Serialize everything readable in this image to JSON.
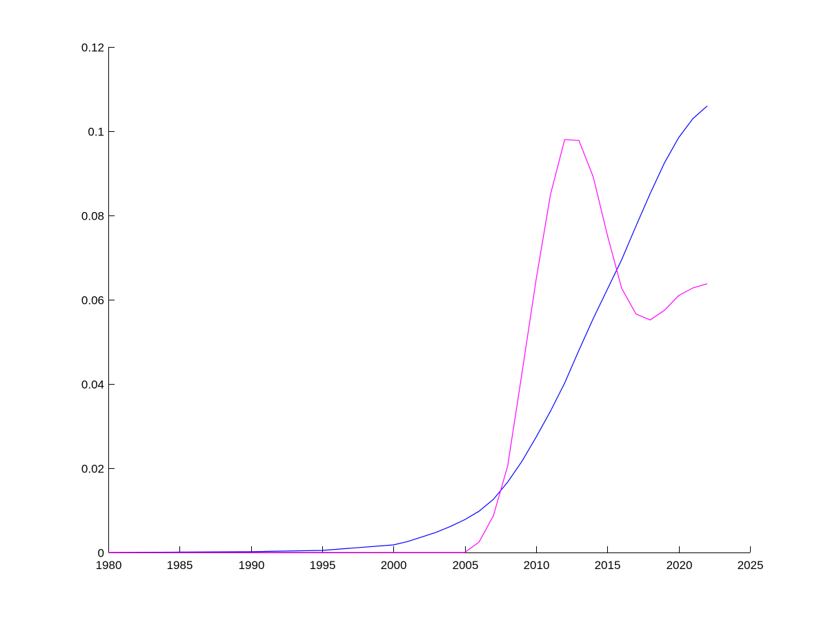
{
  "chart_data": {
    "type": "line",
    "title": "",
    "xlabel": "",
    "ylabel": "",
    "xlim": [
      1980,
      2025
    ],
    "ylim": [
      0,
      0.12
    ],
    "grid": false,
    "xticks": [
      "1980",
      "1985",
      "1990",
      "1995",
      "2000",
      "2005",
      "2010",
      "2015",
      "2020",
      "2025"
    ],
    "yticks": [
      "0",
      "0.02",
      "0.04",
      "0.06",
      "0.08",
      "0.1",
      "0.12"
    ],
    "series": [
      {
        "color": "#0000ff",
        "x": [
          1980,
          1985,
          1990,
          1995,
          2000,
          2001,
          2002,
          2003,
          2004,
          2005,
          2006,
          2007,
          2008,
          2009,
          2010,
          2011,
          2012,
          2013,
          2014,
          2015,
          2016,
          2017,
          2018,
          2019,
          2020,
          2021,
          2022
        ],
        "y": [
          0,
          0.0001,
          0.0002,
          0.0005,
          0.0018,
          0.0026,
          0.0037,
          0.0048,
          0.0062,
          0.0078,
          0.0098,
          0.0126,
          0.0167,
          0.0216,
          0.0274,
          0.0335,
          0.0402,
          0.048,
          0.0555,
          0.0625,
          0.0695,
          0.0775,
          0.0852,
          0.0925,
          0.0985,
          0.103,
          0.106
        ]
      },
      {
        "color": "#ff00ff",
        "x": [
          1980,
          2005,
          2006,
          2007,
          2008,
          2009,
          2010,
          2011,
          2012,
          2013,
          2014,
          2015,
          2016,
          2017,
          2018,
          2019,
          2020,
          2021,
          2022
        ],
        "y": [
          0,
          0,
          0.0025,
          0.0087,
          0.0205,
          0.0424,
          0.0648,
          0.0849,
          0.098,
          0.0978,
          0.0892,
          0.0753,
          0.0627,
          0.0566,
          0.0552,
          0.0575,
          0.061,
          0.0628,
          0.0638
        ]
      }
    ]
  }
}
